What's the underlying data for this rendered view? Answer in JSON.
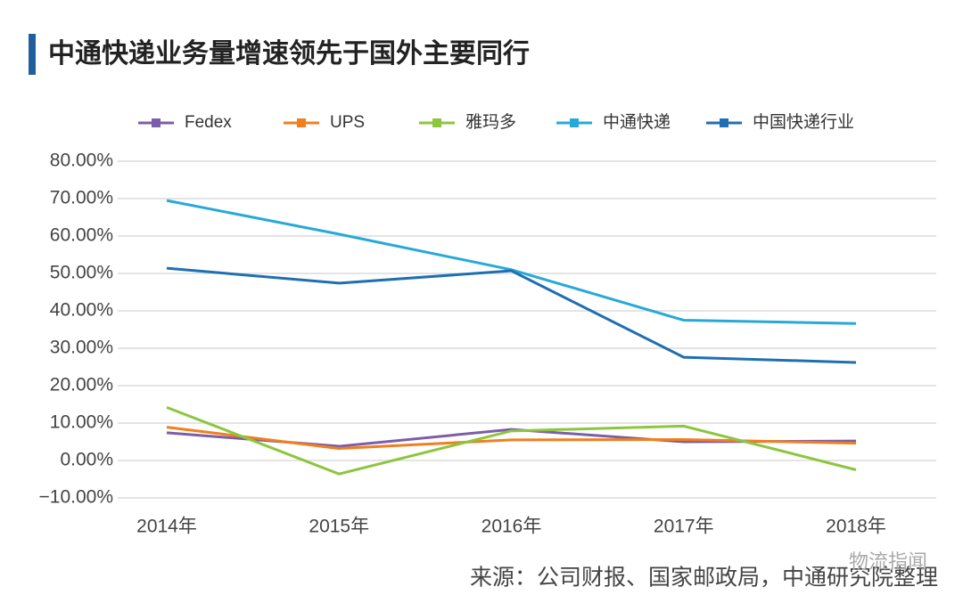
{
  "chart_data": {
    "type": "line",
    "title": "中通快递业务量增速领先于国外主要同行",
    "source": "来源：公司财报、国家邮政局，中通研究院整理",
    "watermark": "物流指闻",
    "categories": [
      "2014年",
      "2015年",
      "2016年",
      "2017年",
      "2018年"
    ],
    "series": [
      {
        "name": "Fedex",
        "color": "#7b5ea7",
        "values": [
          7.4,
          3.8,
          8.3,
          5.0,
          5.2
        ]
      },
      {
        "name": "UPS",
        "color": "#f07f1e",
        "values": [
          8.9,
          3.2,
          5.5,
          5.6,
          4.6
        ]
      },
      {
        "name": "雅玛多",
        "color": "#8cc63f",
        "values": [
          14.2,
          -3.6,
          7.9,
          9.2,
          -2.5
        ]
      },
      {
        "name": "中通快递",
        "color": "#27a9d8",
        "values": [
          69.5,
          60.5,
          51.0,
          37.5,
          36.6
        ]
      },
      {
        "name": "中国快递行业",
        "color": "#1f6fb0",
        "values": [
          51.4,
          47.4,
          50.7,
          27.6,
          26.2
        ]
      }
    ],
    "ylim": [
      -10,
      80
    ],
    "yticks": [
      {
        "value": -10,
        "label": "−10.00%"
      },
      {
        "value": 0,
        "label": "0.00%"
      },
      {
        "value": 10,
        "label": "10.00%"
      },
      {
        "value": 20,
        "label": "20.00%"
      },
      {
        "value": 30,
        "label": "30.00%"
      },
      {
        "value": 40,
        "label": "40.00%"
      },
      {
        "value": 50,
        "label": "50.00%"
      },
      {
        "value": 60,
        "label": "60.00%"
      },
      {
        "value": 70,
        "label": "70.00%"
      },
      {
        "value": 80,
        "label": "80.00%"
      }
    ],
    "grid": true,
    "legend": "top"
  }
}
